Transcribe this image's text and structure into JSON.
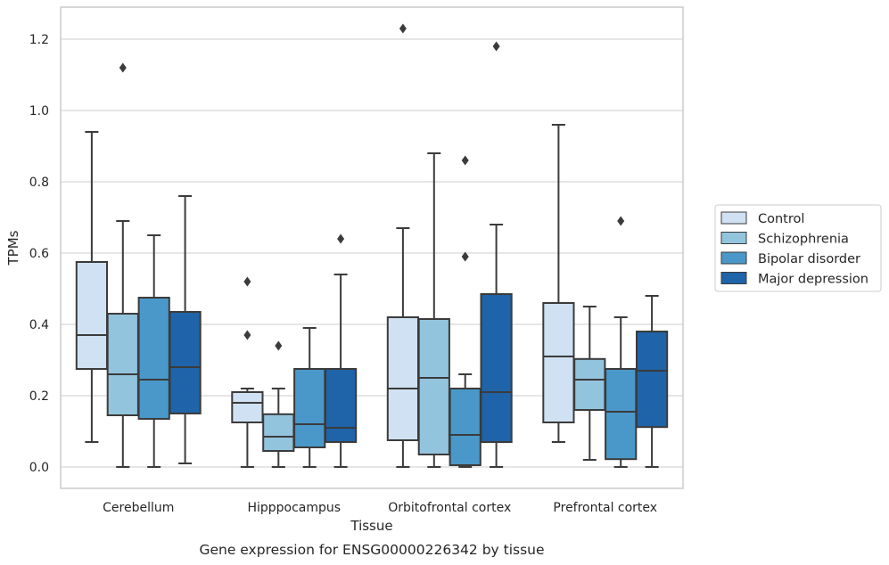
{
  "chart_data": {
    "type": "box",
    "xlabel": "Tissue",
    "ylabel": "TPMs",
    "caption": "Gene expression for ENSG00000226342 by tissue",
    "ylim": [
      -0.06,
      1.29
    ],
    "yticks": [
      "0.0",
      "0.2",
      "0.4",
      "0.6",
      "0.8",
      "1.0",
      "1.2"
    ],
    "grid": "horizontal",
    "legend_position": "right",
    "categories": [
      "Cerebellum",
      "Hipppocampus",
      "Orbitofrontal cortex",
      "Prefrontal cortex"
    ],
    "series": [
      {
        "name": "Control",
        "color": "#cfe1f2",
        "boxes": [
          {
            "whislo": 0.07,
            "q1": 0.275,
            "med": 0.37,
            "q3": 0.575,
            "whishi": 0.94,
            "fliers": []
          },
          {
            "whislo": 0.0,
            "q1": 0.125,
            "med": 0.18,
            "q3": 0.21,
            "whishi": 0.22,
            "fliers": [
              0.37,
              0.52
            ]
          },
          {
            "whislo": 0.0,
            "q1": 0.075,
            "med": 0.22,
            "q3": 0.42,
            "whishi": 0.67,
            "fliers": [
              1.23
            ]
          },
          {
            "whislo": 0.07,
            "q1": 0.125,
            "med": 0.31,
            "q3": 0.46,
            "whishi": 0.96,
            "fliers": []
          }
        ]
      },
      {
        "name": "Schizophrenia",
        "color": "#93c4de",
        "boxes": [
          {
            "whislo": 0.0,
            "q1": 0.145,
            "med": 0.26,
            "q3": 0.43,
            "whishi": 0.69,
            "fliers": [
              1.12
            ]
          },
          {
            "whislo": 0.0,
            "q1": 0.045,
            "med": 0.085,
            "q3": 0.148,
            "whishi": 0.22,
            "fliers": [
              0.34
            ]
          },
          {
            "whislo": 0.0,
            "q1": 0.035,
            "med": 0.25,
            "q3": 0.415,
            "whishi": 0.88,
            "fliers": []
          },
          {
            "whislo": 0.02,
            "q1": 0.16,
            "med": 0.245,
            "q3": 0.303,
            "whishi": 0.45,
            "fliers": []
          }
        ]
      },
      {
        "name": "Bipolar disorder",
        "color": "#4a98c9",
        "boxes": [
          {
            "whislo": 0.0,
            "q1": 0.135,
            "med": 0.245,
            "q3": 0.475,
            "whishi": 0.65,
            "fliers": []
          },
          {
            "whislo": 0.0,
            "q1": 0.055,
            "med": 0.12,
            "q3": 0.275,
            "whishi": 0.39,
            "fliers": []
          },
          {
            "whislo": 0.0,
            "q1": 0.005,
            "med": 0.09,
            "q3": 0.22,
            "whishi": 0.26,
            "fliers": [
              0.59,
              0.86
            ]
          },
          {
            "whislo": 0.0,
            "q1": 0.022,
            "med": 0.155,
            "q3": 0.275,
            "whishi": 0.42,
            "fliers": [
              0.69
            ]
          }
        ]
      },
      {
        "name": "Major depression",
        "color": "#1f63a8",
        "boxes": [
          {
            "whislo": 0.01,
            "q1": 0.15,
            "med": 0.28,
            "q3": 0.435,
            "whishi": 0.76,
            "fliers": []
          },
          {
            "whislo": 0.0,
            "q1": 0.07,
            "med": 0.11,
            "q3": 0.275,
            "whishi": 0.54,
            "fliers": [
              0.64
            ]
          },
          {
            "whislo": 0.0,
            "q1": 0.07,
            "med": 0.21,
            "q3": 0.485,
            "whishi": 0.68,
            "fliers": [
              1.18
            ]
          },
          {
            "whislo": 0.0,
            "q1": 0.112,
            "med": 0.27,
            "q3": 0.38,
            "whishi": 0.48,
            "fliers": []
          }
        ]
      }
    ]
  },
  "colors": {
    "box_edge": "#3b3b3b",
    "grid": "#cccccc",
    "frame": "#cccccc",
    "text": "#262626"
  }
}
